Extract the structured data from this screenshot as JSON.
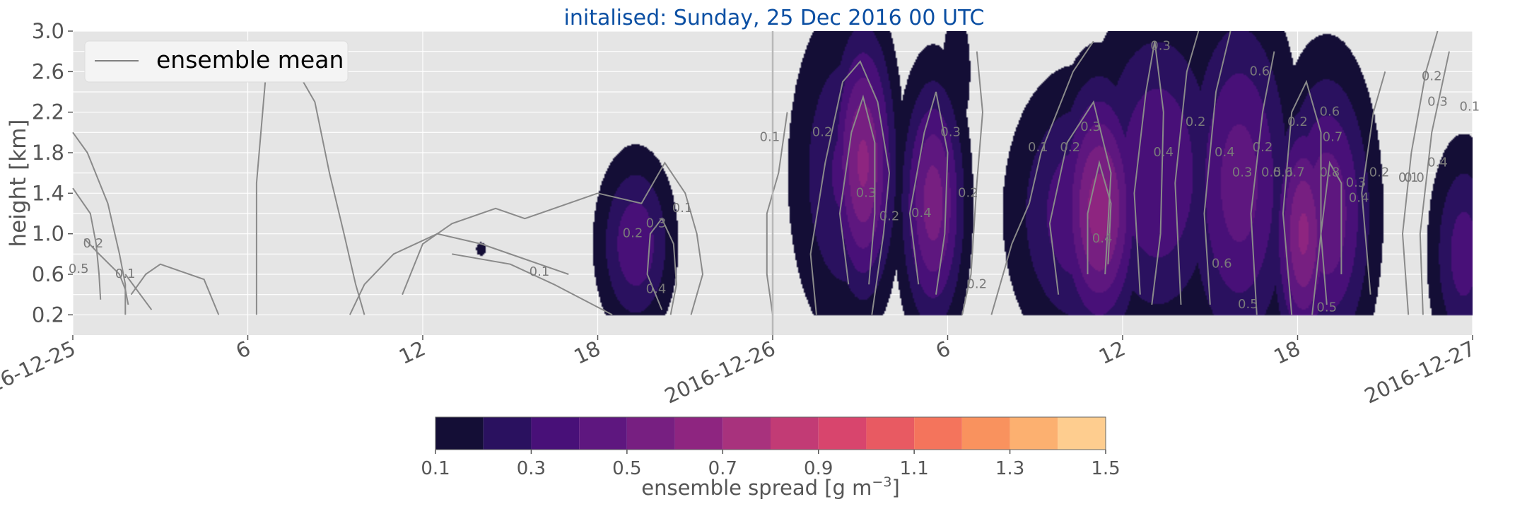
{
  "chart_data": {
    "type": "heatmap",
    "title": "initalised: Sunday, 25 Dec 2016 00 UTC",
    "ylabel": "height [km]",
    "xlabel": "",
    "x_range_hours": [
      0,
      48
    ],
    "ylim": [
      0.0,
      3.0
    ],
    "y_ticks": [
      0.2,
      0.6,
      1.0,
      1.4,
      1.8,
      2.2,
      2.6,
      3.0
    ],
    "y_tick_labels": [
      "0.2",
      "0.6",
      "1.0",
      "1.4",
      "1.8",
      "2.2",
      "2.6",
      "3.0"
    ],
    "x_ticks_hours": [
      0,
      6,
      12,
      18,
      24,
      30,
      36,
      42,
      48
    ],
    "x_tick_labels": [
      "2016-12-25",
      "6",
      "12",
      "18",
      "2016-12-26",
      "6",
      "12",
      "18",
      "2016-12-27"
    ],
    "grid": true,
    "legend": {
      "placement": "upper-left",
      "entries": [
        "ensemble mean"
      ]
    },
    "colorbar": {
      "label_text": "ensemble spread [g m",
      "label_superscript": "−3",
      "label_suffix": "]",
      "boundaries": [
        0.1,
        0.2,
        0.3,
        0.4,
        0.5,
        0.6,
        0.7,
        0.8,
        0.9,
        1.0,
        1.1,
        1.2,
        1.3,
        1.4,
        1.5
      ],
      "tick_values": [
        0.1,
        0.3,
        0.5,
        0.7,
        0.9,
        1.1,
        1.3,
        1.5
      ],
      "tick_labels": [
        "0.1",
        "0.3",
        "0.5",
        "0.7",
        "0.9",
        "1.1",
        "1.3",
        "1.5"
      ],
      "colors": [
        "#140e36",
        "#2a115f",
        "#481078",
        "#5e177f",
        "#771f81",
        "#8e2580",
        "#a8327d",
        "#c23b75",
        "#d8456d",
        "#e85a62",
        "#f4745c",
        "#f9925e",
        "#fcb070",
        "#fecd8f",
        "#fdeaac"
      ]
    },
    "spread_cells": [
      {
        "t_hours": 19.3,
        "h_km": 0.9,
        "sigma_t": 0.9,
        "sigma_h": 0.6,
        "peak": 0.38
      },
      {
        "t_hours": 14.0,
        "h_km": 0.85,
        "sigma_t": 0.15,
        "sigma_h": 0.06,
        "peak": 0.18
      },
      {
        "t_hours": 25.2,
        "h_km": 1.05,
        "sigma_t": 0.5,
        "sigma_h": 0.5,
        "peak": 0.16
      },
      {
        "t_hours": 26.5,
        "h_km": 1.6,
        "sigma_t": 1.3,
        "sigma_h": 1.1,
        "peak": 0.32
      },
      {
        "t_hours": 27.1,
        "h_km": 1.7,
        "sigma_t": 0.75,
        "sigma_h": 0.9,
        "peak": 0.62
      },
      {
        "t_hours": 29.5,
        "h_km": 1.3,
        "sigma_t": 0.75,
        "sigma_h": 0.85,
        "peak": 0.55
      },
      {
        "t_hours": 30.3,
        "h_km": 2.6,
        "sigma_t": 0.4,
        "sigma_h": 0.5,
        "peak": 0.2
      },
      {
        "t_hours": 34.5,
        "h_km": 1.2,
        "sigma_t": 1.6,
        "sigma_h": 0.9,
        "peak": 0.38
      },
      {
        "t_hours": 35.2,
        "h_km": 1.25,
        "sigma_t": 0.95,
        "sigma_h": 0.85,
        "peak": 0.65
      },
      {
        "t_hours": 37.2,
        "h_km": 1.6,
        "sigma_t": 1.6,
        "sigma_h": 1.1,
        "peak": 0.4
      },
      {
        "t_hours": 40.0,
        "h_km": 1.5,
        "sigma_t": 1.3,
        "sigma_h": 1.2,
        "peak": 0.45
      },
      {
        "t_hours": 43.0,
        "h_km": 1.2,
        "sigma_t": 1.1,
        "sigma_h": 1.0,
        "peak": 0.48
      },
      {
        "t_hours": 42.2,
        "h_km": 1.0,
        "sigma_t": 0.7,
        "sigma_h": 0.8,
        "peak": 0.62
      },
      {
        "t_hours": 47.7,
        "h_km": 0.8,
        "sigma_t": 0.8,
        "sigma_h": 0.75,
        "peak": 0.35
      }
    ],
    "mean_contours": [
      {
        "label": "0.1",
        "points": [
          [
            0,
            1.45
          ],
          [
            0.6,
            1.2
          ],
          [
            0.8,
            0.9
          ],
          [
            0.9,
            0.6
          ],
          [
            0.95,
            0.35
          ]
        ]
      },
      {
        "label": "0.2",
        "points": [
          [
            0,
            2.0
          ],
          [
            0.5,
            1.8
          ],
          [
            1.2,
            1.3
          ],
          [
            1.6,
            0.8
          ],
          [
            1.8,
            0.5
          ],
          [
            1.8,
            0.2
          ]
        ]
      },
      {
        "label": "0.1",
        "points": [
          [
            0.4,
            0.95
          ],
          [
            0.9,
            0.8
          ],
          [
            1.6,
            0.6
          ],
          [
            1.8,
            0.45
          ],
          [
            1.9,
            0.3
          ]
        ]
      },
      {
        "label": "0.1",
        "points": [
          [
            1.8,
            0.6
          ],
          [
            2.7,
            0.25
          ]
        ]
      },
      {
        "label": "0.1",
        "points": [
          [
            2.0,
            0.4
          ],
          [
            2.5,
            0.6
          ],
          [
            3.0,
            0.7
          ],
          [
            4.5,
            0.55
          ],
          [
            5.0,
            0.2
          ]
        ]
      },
      {
        "label": "0.1",
        "points": [
          [
            6.3,
            0.2
          ],
          [
            6.3,
            1.5
          ],
          [
            6.6,
            2.5
          ],
          [
            7.2,
            2.8
          ],
          [
            7.8,
            2.55
          ],
          [
            8.3,
            2.3
          ],
          [
            8.8,
            1.6
          ],
          [
            9.3,
            1.0
          ],
          [
            9.7,
            0.5
          ],
          [
            10.0,
            0.2
          ]
        ]
      },
      {
        "label": "0.1",
        "points": [
          [
            9.5,
            0.2
          ],
          [
            10.0,
            0.5
          ],
          [
            11.0,
            0.8
          ],
          [
            12.5,
            1.0
          ],
          [
            14.0,
            0.9
          ],
          [
            15.5,
            0.75
          ],
          [
            17.0,
            0.6
          ]
        ]
      },
      {
        "label": "0.1",
        "points": [
          [
            11.3,
            0.4
          ],
          [
            12.0,
            0.9
          ],
          [
            13.0,
            1.1
          ],
          [
            14.5,
            1.25
          ],
          [
            15.5,
            1.15
          ],
          [
            17.0,
            1.3
          ],
          [
            18.0,
            1.4
          ]
        ]
      },
      {
        "label": "0.1",
        "points": [
          [
            13.0,
            0.8
          ],
          [
            15.0,
            0.7
          ],
          [
            16.5,
            0.5
          ],
          [
            18.5,
            0.2
          ]
        ]
      },
      {
        "label": "0.1",
        "points": [
          [
            18.0,
            1.4
          ],
          [
            19.5,
            1.3
          ],
          [
            20.3,
            1.7
          ],
          [
            21.0,
            1.4
          ],
          [
            21.4,
            1.0
          ],
          [
            21.6,
            0.6
          ],
          [
            21.2,
            0.2
          ]
        ]
      },
      {
        "label": "0.3",
        "points": [
          [
            20.2,
            0.25
          ],
          [
            19.7,
            0.6
          ],
          [
            19.8,
            1.0
          ],
          [
            20.2,
            1.15
          ],
          [
            20.6,
            0.9
          ],
          [
            20.7,
            0.5
          ],
          [
            20.5,
            0.2
          ]
        ]
      },
      {
        "label": "0.1",
        "points": [
          [
            24.0,
            0.2
          ],
          [
            23.8,
            0.6
          ],
          [
            23.8,
            1.2
          ],
          [
            24.2,
            1.6
          ],
          [
            24.5,
            2.2
          ]
        ]
      },
      {
        "label": "0.2",
        "points": [
          [
            25.5,
            0.2
          ],
          [
            25.3,
            0.8
          ],
          [
            25.8,
            1.7
          ],
          [
            26.4,
            2.5
          ],
          [
            27.0,
            2.7
          ],
          [
            27.6,
            2.3
          ],
          [
            28.0,
            1.6
          ],
          [
            27.8,
            1.0
          ],
          [
            27.4,
            0.2
          ]
        ]
      },
      {
        "label": "0.3",
        "points": [
          [
            26.6,
            0.5
          ],
          [
            26.3,
            1.2
          ],
          [
            26.7,
            2.0
          ],
          [
            27.1,
            2.35
          ],
          [
            27.5,
            1.9
          ],
          [
            27.5,
            1.2
          ],
          [
            27.3,
            0.5
          ]
        ]
      },
      {
        "label": "0.4",
        "points": [
          [
            29.0,
            0.5
          ],
          [
            28.7,
            1.2
          ],
          [
            29.2,
            2.0
          ],
          [
            29.6,
            2.4
          ],
          [
            30.0,
            1.8
          ],
          [
            29.9,
            1.0
          ],
          [
            29.6,
            0.4
          ]
        ]
      },
      {
        "label": "0.2",
        "points": [
          [
            30.5,
            0.2
          ],
          [
            30.8,
            0.6
          ],
          [
            31.0,
            1.5
          ],
          [
            31.2,
            2.2
          ],
          [
            31.0,
            2.8
          ]
        ]
      },
      {
        "label": "0.1",
        "points": [
          [
            31.5,
            0.2
          ],
          [
            32.2,
            0.9
          ],
          [
            32.8,
            1.3
          ],
          [
            33.2,
            1.8
          ],
          [
            34.3,
            2.6
          ],
          [
            35.0,
            2.9
          ]
        ]
      },
      {
        "label": "0.2",
        "points": [
          [
            33.8,
            0.4
          ],
          [
            33.5,
            1.1
          ],
          [
            34.1,
            1.9
          ],
          [
            35.0,
            2.3
          ],
          [
            35.6,
            1.6
          ],
          [
            35.4,
            0.6
          ]
        ]
      },
      {
        "label": "0.3",
        "points": [
          [
            34.8,
            0.6
          ],
          [
            34.8,
            1.2
          ],
          [
            35.2,
            1.7
          ],
          [
            35.6,
            1.3
          ],
          [
            35.5,
            0.7
          ]
        ]
      },
      {
        "label": "0.4",
        "points": [
          [
            36.6,
            0.4
          ],
          [
            36.4,
            1.4
          ],
          [
            36.8,
            2.4
          ],
          [
            37.1,
            2.9
          ],
          [
            37.4,
            2.2
          ],
          [
            37.3,
            1.0
          ],
          [
            37.0,
            0.3
          ]
        ]
      },
      {
        "label": "0.3",
        "points": [
          [
            38.0,
            0.3
          ],
          [
            37.8,
            1.5
          ],
          [
            38.2,
            2.6
          ],
          [
            38.6,
            3.0
          ]
        ]
      },
      {
        "label": "0.6",
        "points": [
          [
            39.0,
            0.3
          ],
          [
            38.8,
            1.2
          ],
          [
            39.2,
            2.4
          ],
          [
            39.7,
            3.0
          ]
        ]
      },
      {
        "label": "0.4",
        "points": [
          [
            40.6,
            0.2
          ],
          [
            40.4,
            1.2
          ],
          [
            40.8,
            2.2
          ],
          [
            41.2,
            2.8
          ]
        ]
      },
      {
        "label": "0.2",
        "points": [
          [
            41.8,
            0.2
          ],
          [
            41.5,
            1.2
          ],
          [
            41.8,
            2.2
          ],
          [
            42.3,
            2.5
          ],
          [
            42.8,
            2.0
          ],
          [
            42.8,
            1.0
          ],
          [
            42.5,
            0.2
          ]
        ]
      },
      {
        "label": "0.8",
        "points": [
          [
            43.0,
            0.3
          ],
          [
            42.8,
            1.0
          ],
          [
            43.1,
            1.7
          ],
          [
            43.5,
            1.5
          ],
          [
            43.5,
            0.6
          ]
        ]
      },
      {
        "label": "0.2",
        "points": [
          [
            44.5,
            0.4
          ],
          [
            44.2,
            1.4
          ],
          [
            44.6,
            2.2
          ],
          [
            45.0,
            2.6
          ]
        ]
      },
      {
        "label": "0.1",
        "points": [
          [
            45.8,
            0.2
          ],
          [
            45.6,
            1.0
          ],
          [
            45.9,
            1.8
          ],
          [
            46.4,
            2.6
          ],
          [
            46.8,
            3.0
          ]
        ]
      },
      {
        "label": "0.3",
        "points": [
          [
            46.3,
            0.2
          ],
          [
            46.2,
            1.0
          ],
          [
            46.6,
            2.0
          ],
          [
            47.2,
            2.8
          ]
        ]
      }
    ],
    "contour_labels": [
      {
        "text": "0.5",
        "t_hours": 0.2,
        "h_km": 0.65
      },
      {
        "text": "0.2",
        "t_hours": 0.7,
        "h_km": 0.9
      },
      {
        "text": "0.1",
        "t_hours": 1.8,
        "h_km": 0.6
      },
      {
        "text": "0.1",
        "t_hours": 16.0,
        "h_km": 0.62
      },
      {
        "text": "0.2",
        "t_hours": 19.2,
        "h_km": 1.0
      },
      {
        "text": "0.3",
        "t_hours": 20.0,
        "h_km": 1.1
      },
      {
        "text": "0.1",
        "t_hours": 20.9,
        "h_km": 1.25
      },
      {
        "text": "0.4",
        "t_hours": 20.0,
        "h_km": 0.45
      },
      {
        "text": "0.1",
        "t_hours": 23.9,
        "h_km": 1.95
      },
      {
        "text": "0.2",
        "t_hours": 25.7,
        "h_km": 2.0
      },
      {
        "text": "0.3",
        "t_hours": 27.2,
        "h_km": 1.4
      },
      {
        "text": "0.2",
        "t_hours": 28.0,
        "h_km": 1.17
      },
      {
        "text": "0.3",
        "t_hours": 30.1,
        "h_km": 2.0
      },
      {
        "text": "0.4",
        "t_hours": 29.1,
        "h_km": 1.2
      },
      {
        "text": "0.2",
        "t_hours": 30.7,
        "h_km": 1.4
      },
      {
        "text": "0.2",
        "t_hours": 31.0,
        "h_km": 0.5
      },
      {
        "text": "0.1",
        "t_hours": 33.1,
        "h_km": 1.85
      },
      {
        "text": "0.2",
        "t_hours": 34.2,
        "h_km": 1.85
      },
      {
        "text": "0.3",
        "t_hours": 34.9,
        "h_km": 2.05
      },
      {
        "text": "0.4",
        "t_hours": 35.3,
        "h_km": 0.95
      },
      {
        "text": "0.3",
        "t_hours": 37.3,
        "h_km": 2.85
      },
      {
        "text": "0.4",
        "t_hours": 37.4,
        "h_km": 1.8
      },
      {
        "text": "0.2",
        "t_hours": 38.5,
        "h_km": 2.1
      },
      {
        "text": "0.6",
        "t_hours": 40.7,
        "h_km": 2.6
      },
      {
        "text": "0.4",
        "t_hours": 39.5,
        "h_km": 1.8
      },
      {
        "text": "0.3",
        "t_hours": 40.1,
        "h_km": 1.6
      },
      {
        "text": "0.2",
        "t_hours": 40.8,
        "h_km": 1.85
      },
      {
        "text": "0.6",
        "t_hours": 39.4,
        "h_km": 0.7
      },
      {
        "text": "0.5",
        "t_hours": 40.3,
        "h_km": 0.3
      },
      {
        "text": "0.5",
        "t_hours": 41.1,
        "h_km": 1.6
      },
      {
        "text": "0.6",
        "t_hours": 41.5,
        "h_km": 1.6
      },
      {
        "text": "0.7",
        "t_hours": 41.9,
        "h_km": 1.6
      },
      {
        "text": "0.2",
        "t_hours": 42.0,
        "h_km": 2.1
      },
      {
        "text": "0.6",
        "t_hours": 43.1,
        "h_km": 2.2
      },
      {
        "text": "0.7",
        "t_hours": 43.2,
        "h_km": 1.95
      },
      {
        "text": "0.8",
        "t_hours": 43.1,
        "h_km": 1.6
      },
      {
        "text": "0.3",
        "t_hours": 44.0,
        "h_km": 1.5
      },
      {
        "text": "0.4",
        "t_hours": 44.1,
        "h_km": 1.35
      },
      {
        "text": "0.2",
        "t_hours": 44.8,
        "h_km": 1.6
      },
      {
        "text": "0.5",
        "t_hours": 43.0,
        "h_km": 0.27
      },
      {
        "text": "0.1",
        "t_hours": 45.8,
        "h_km": 1.55
      },
      {
        "text": "0.0",
        "t_hours": 46.0,
        "h_km": 1.55
      },
      {
        "text": "0.2",
        "t_hours": 46.6,
        "h_km": 2.55
      },
      {
        "text": "0.3",
        "t_hours": 46.8,
        "h_km": 2.3
      },
      {
        "text": "0.4",
        "t_hours": 46.8,
        "h_km": 1.7
      },
      {
        "text": "0.1",
        "t_hours": 47.9,
        "h_km": 2.25
      }
    ]
  }
}
